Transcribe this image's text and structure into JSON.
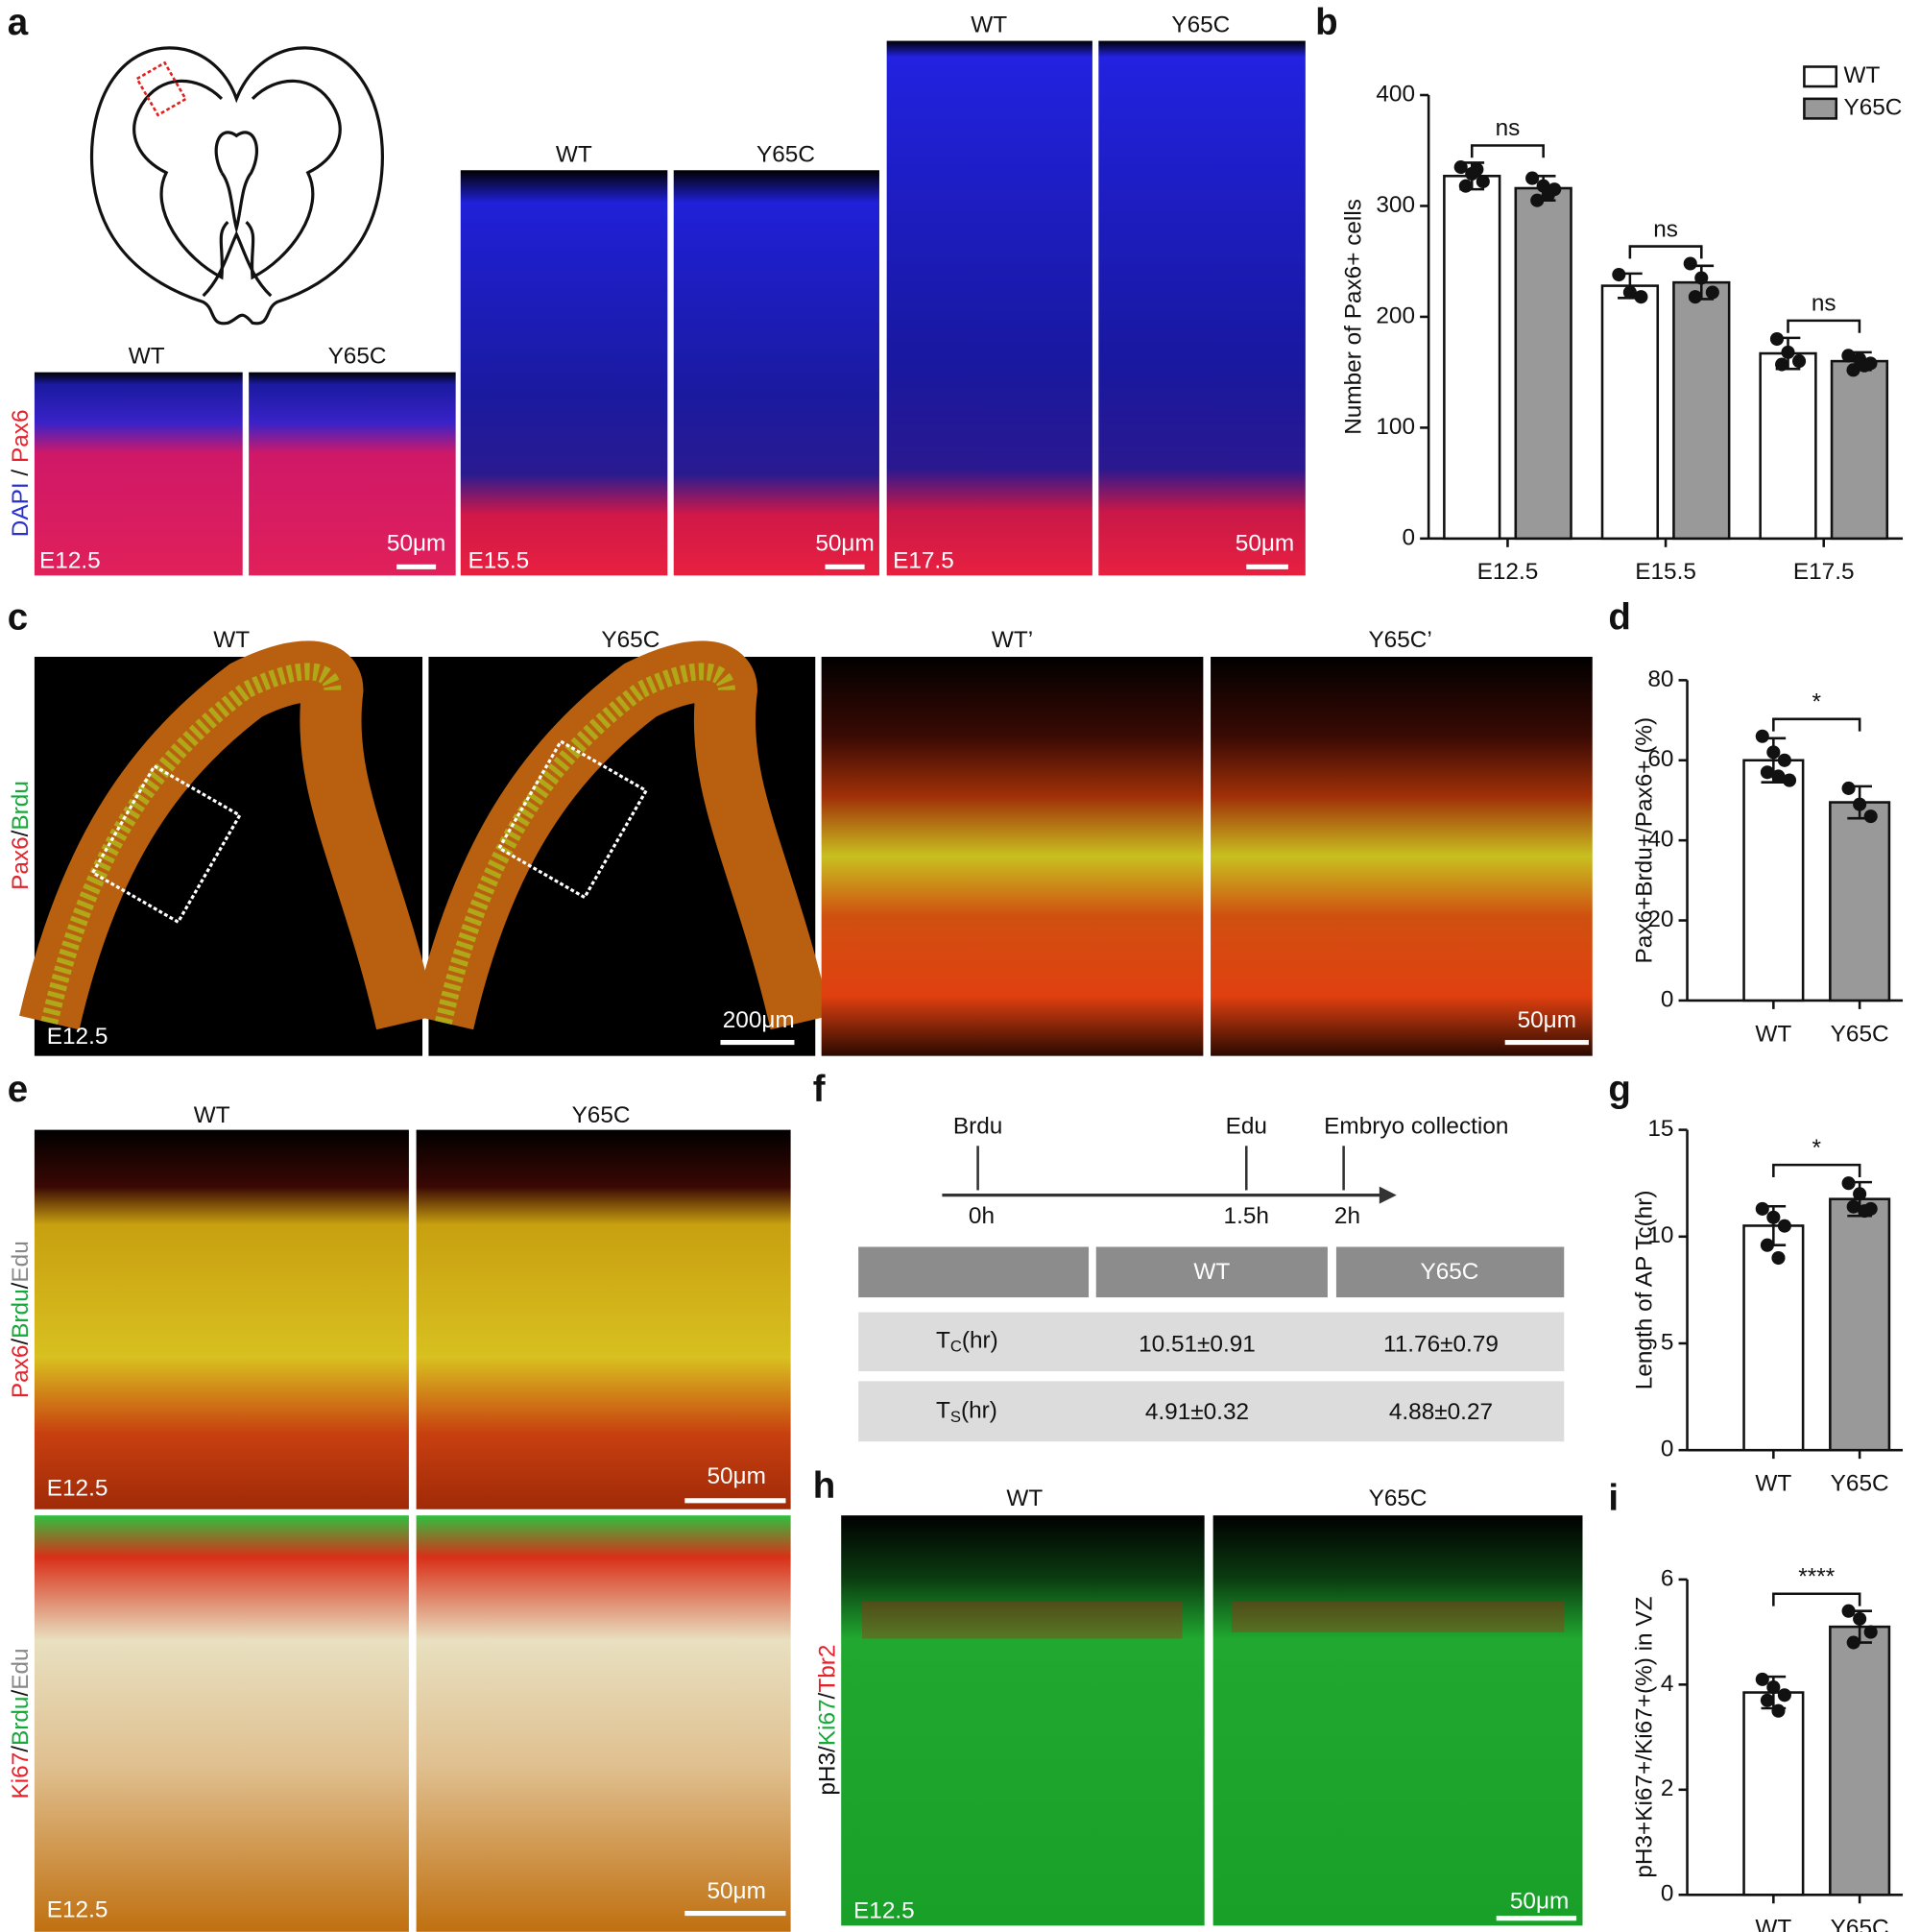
{
  "panel_labels": [
    "a",
    "b",
    "c",
    "d",
    "e",
    "f",
    "g",
    "h",
    "i"
  ],
  "a": {
    "stain": [
      "DAPI",
      "/",
      "Pax6"
    ],
    "labels": [
      "WT",
      "Y65C",
      "WT",
      "Y65C",
      "WT",
      "Y65C"
    ],
    "stages": [
      "E12.5",
      "E15.5",
      "E17.5"
    ],
    "scales": [
      "50μm",
      "50μm",
      "50μm"
    ]
  },
  "c": {
    "stain": [
      "Pax6",
      "/",
      "Brdu"
    ],
    "labels": [
      "WT",
      "Y65C",
      "WT’",
      "Y65C’"
    ],
    "stage": "E12.5",
    "scales": [
      "200μm",
      "50μm"
    ]
  },
  "e": {
    "stain_top": [
      "Pax6",
      "/",
      "Brdu",
      "/",
      "Edu"
    ],
    "stain_bottom": [
      "Ki67",
      "/",
      "Brdu",
      "/",
      "Edu"
    ],
    "labels": [
      "WT",
      "Y65C"
    ],
    "stages": [
      "E12.5",
      "E12.5"
    ],
    "scales": [
      "50μm",
      "50μm"
    ]
  },
  "f": {
    "timeline": [
      {
        "label": "Brdu",
        "time": "0h"
      },
      {
        "label": "Edu",
        "time": "1.5h"
      },
      {
        "label": "Embryo collection",
        "time": "2h"
      }
    ],
    "table": {
      "header": [
        "WT",
        "Y65C"
      ],
      "rows": [
        {
          "label": [
            "T",
            "C",
            "(hr)"
          ],
          "values": [
            "10.51±0.91",
            "11.76±0.79"
          ]
        },
        {
          "label": [
            "T",
            "S",
            "(hr)"
          ],
          "values": [
            "4.91±0.32",
            "4.88±0.27"
          ]
        }
      ]
    }
  },
  "h": {
    "stain": [
      "pH3",
      "/",
      "Ki67",
      "/",
      "Tbr2"
    ],
    "labels": [
      "WT",
      "Y65C"
    ],
    "stage": "E12.5",
    "scale": "50μm"
  },
  "chart_data": [
    {
      "type": "bar",
      "y_label": "Number of  Pax6+ cells",
      "categories": [
        "E12.5",
        "E15.5",
        "E17.5"
      ],
      "series": [
        {
          "name": "WT",
          "color": "#ffffff",
          "values": [
            327,
            228,
            167
          ],
          "errors": [
            12,
            11,
            14
          ],
          "points": [
            [
              335,
              329,
              322,
              318,
              333
            ],
            [
              238,
              222,
              218
            ],
            [
              180,
              168,
              160,
              157
            ]
          ]
        },
        {
          "name": "Y65C",
          "color": "#999999",
          "values": [
            316,
            231,
            160
          ],
          "errors": [
            11,
            15,
            8
          ],
          "points": [
            [
              325,
              318,
              315,
              305,
              310
            ],
            [
              248,
              235,
              222,
              218
            ],
            [
              165,
              162,
              158,
              152,
              156
            ]
          ]
        }
      ],
      "annotations": [
        "ns",
        "ns",
        "ns"
      ],
      "ylim": [
        0,
        400
      ],
      "yticks": [
        0,
        100,
        200,
        300,
        400
      ],
      "legend": "upper right"
    },
    {
      "type": "bar",
      "y_label": "Pax6+Brdu+/Pax6+ (%)",
      "categories": [
        "WT",
        "Y65C"
      ],
      "colors": [
        "#ffffff",
        "#999999"
      ],
      "values": [
        60,
        49.5
      ],
      "errors": [
        5.5,
        4
      ],
      "points": [
        [
          66,
          62,
          60,
          57,
          56,
          55
        ],
        [
          53,
          49,
          46
        ]
      ],
      "annotation": "*",
      "ylim": [
        0,
        80
      ],
      "yticks": [
        0,
        20,
        40,
        60,
        80
      ]
    },
    {
      "type": "bar",
      "y_label": "Length of AP Tc(hr)",
      "categories": [
        "WT",
        "Y65C"
      ],
      "colors": [
        "#ffffff",
        "#999999"
      ],
      "values": [
        10.51,
        11.76
      ],
      "errors": [
        0.91,
        0.79
      ],
      "points": [
        [
          11.3,
          10.9,
          10.5,
          9.6,
          9.0
        ],
        [
          12.5,
          12.0,
          11.3,
          11.4,
          11.2
        ]
      ],
      "annotation": "*",
      "ylim": [
        0,
        15
      ],
      "yticks": [
        0,
        5,
        10,
        15
      ]
    },
    {
      "type": "bar",
      "y_label": "pH3+Ki67+/Ki67+(%) in VZ",
      "categories": [
        "WT",
        "Y65C"
      ],
      "colors": [
        "#ffffff",
        "#999999"
      ],
      "values": [
        3.85,
        5.1
      ],
      "errors": [
        0.3,
        0.3
      ],
      "points": [
        [
          4.1,
          3.95,
          3.8,
          3.7,
          3.5
        ],
        [
          5.4,
          5.25,
          5.0,
          4.8
        ]
      ],
      "annotation": "****",
      "ylim": [
        0,
        6
      ],
      "yticks": [
        0,
        2,
        4,
        6
      ]
    }
  ]
}
